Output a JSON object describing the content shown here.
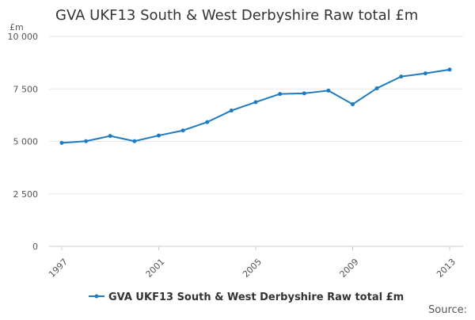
{
  "page": {
    "source_label": "Source:"
  },
  "chart_data": {
    "type": "line",
    "title": "GVA UKF13 South & West Derbyshire Raw total £m",
    "ylabel": "£m",
    "xlabel": "",
    "x": [
      1997,
      1998,
      1999,
      2000,
      2001,
      2002,
      2003,
      2004,
      2005,
      2006,
      2007,
      2008,
      2009,
      2010,
      2011,
      2012,
      2013
    ],
    "x_tick_labels": [
      "1997",
      "2001",
      "2005",
      "2009",
      "2013"
    ],
    "x_tick_values": [
      1997,
      2001,
      2005,
      2009,
      2013
    ],
    "y_tick_labels": [
      "0",
      "2 500",
      "5 000",
      "7 500",
      "10 000"
    ],
    "y_tick_values": [
      0,
      2500,
      5000,
      7500,
      10000
    ],
    "ylim": [
      0,
      10000
    ],
    "series": [
      {
        "name": "GVA UKF13 South & West Derbyshire Raw total £m",
        "color": "#1f7bbf",
        "values": [
          4930,
          5010,
          5260,
          5010,
          5280,
          5520,
          5920,
          6470,
          6870,
          7260,
          7290,
          7420,
          6770,
          7530,
          8090,
          8240,
          8420
        ]
      }
    ],
    "grid": true,
    "legend_position": "bottom"
  }
}
